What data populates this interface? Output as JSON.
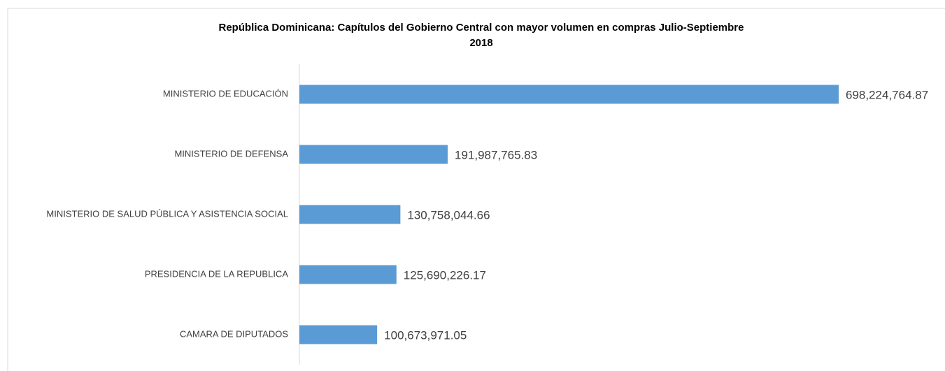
{
  "chart_data": {
    "type": "bar",
    "orientation": "horizontal",
    "title": "República Dominicana: Capítulos del Gobierno Central con mayor volumen en compras Julio-Septiembre 2018",
    "categories": [
      "MINISTERIO DE EDUCACIÓN",
      "MINISTERIO DE DEFENSA",
      "MINISTERIO DE SALUD PÚBLICA Y ASISTENCIA SOCIAL",
      "PRESIDENCIA DE LA REPUBLICA",
      "CAMARA DE DIPUTADOS"
    ],
    "values": [
      698224764.87,
      191987765.83,
      130758044.66,
      125690226.17,
      100673971.05
    ],
    "value_labels": [
      "698,224,764.87",
      "191,987,765.83",
      "130,758,044.66",
      "125,690,226.17",
      "100,673,971.05"
    ],
    "color": "#5b9bd5"
  }
}
